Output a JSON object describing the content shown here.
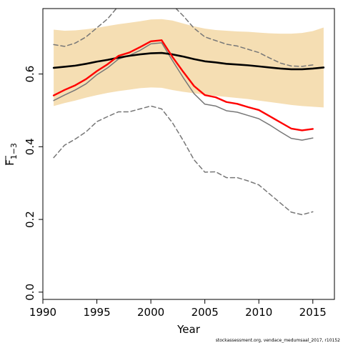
{
  "chart_data": {
    "type": "line",
    "title": "",
    "xlabel": "Year",
    "ylabel": "F",
    "ylabel_sub": "1−3",
    "xlim": [
      1990,
      2017
    ],
    "ylim": [
      -0.02,
      0.78
    ],
    "xticks": [
      1990,
      1995,
      2000,
      2005,
      2010,
      2015
    ],
    "yticks": [
      0.0,
      0.2,
      0.4,
      0.6
    ],
    "ytick_labels": [
      "0.0",
      "0.2",
      "0.4",
      "0.6"
    ],
    "grid": false,
    "legend": "none",
    "band": {
      "color": "#f5deb3",
      "x": [
        1991,
        1992,
        1993,
        1994,
        1995,
        1996,
        1997,
        1998,
        1999,
        2000,
        2001,
        2002,
        2003,
        2004,
        2005,
        2006,
        2007,
        2008,
        2009,
        2010,
        2011,
        2012,
        2013,
        2014,
        2015,
        2016
      ],
      "lower": [
        0.512,
        0.52,
        0.527,
        0.535,
        0.542,
        0.548,
        0.553,
        0.557,
        0.561,
        0.563,
        0.562,
        0.556,
        0.551,
        0.547,
        0.543,
        0.54,
        0.537,
        0.534,
        0.531,
        0.527,
        0.523,
        0.519,
        0.515,
        0.512,
        0.51,
        0.508
      ],
      "upper": [
        0.722,
        0.719,
        0.72,
        0.723,
        0.727,
        0.732,
        0.737,
        0.741,
        0.745,
        0.75,
        0.751,
        0.747,
        0.739,
        0.731,
        0.725,
        0.721,
        0.719,
        0.717,
        0.716,
        0.714,
        0.712,
        0.711,
        0.711,
        0.713,
        0.718,
        0.728
      ]
    },
    "series": [
      {
        "color": "#000000",
        "style": "solid",
        "x": [
          1991,
          1992,
          1993,
          1994,
          1995,
          1996,
          1997,
          1998,
          1999,
          2000,
          2001,
          2002,
          2003,
          2004,
          2005,
          2006,
          2007,
          2008,
          2009,
          2010,
          2011,
          2012,
          2013,
          2014,
          2015,
          2016
        ],
        "values": [
          0.617,
          0.62,
          0.623,
          0.628,
          0.634,
          0.639,
          0.645,
          0.65,
          0.654,
          0.657,
          0.658,
          0.654,
          0.648,
          0.641,
          0.635,
          0.632,
          0.628,
          0.626,
          0.624,
          0.621,
          0.618,
          0.615,
          0.613,
          0.613,
          0.615,
          0.618
        ]
      },
      {
        "color": "#ff0000",
        "style": "solid",
        "x": [
          1991,
          1992,
          1993,
          1994,
          1995,
          1996,
          1997,
          1998,
          1999,
          2000,
          2001,
          2002,
          2003,
          2004,
          2005,
          2006,
          2007,
          2008,
          2009,
          2010,
          2011,
          2012,
          2013,
          2014,
          2015
        ],
        "values": [
          0.541,
          0.556,
          0.569,
          0.586,
          0.608,
          0.627,
          0.65,
          0.659,
          0.674,
          0.69,
          0.693,
          0.647,
          0.606,
          0.567,
          0.542,
          0.536,
          0.523,
          0.518,
          0.509,
          0.501,
          0.484,
          0.467,
          0.45,
          0.445,
          0.449
        ]
      },
      {
        "color": "#777777",
        "style": "solid",
        "x": [
          1991,
          1992,
          1993,
          1994,
          1995,
          1996,
          1997,
          1998,
          1999,
          2000,
          2001,
          2002,
          2003,
          2004,
          2005,
          2006,
          2007,
          2008,
          2009,
          2010,
          2011,
          2012,
          2013,
          2014,
          2015
        ],
        "values": [
          0.527,
          0.542,
          0.556,
          0.573,
          0.598,
          0.617,
          0.641,
          0.651,
          0.665,
          0.683,
          0.686,
          0.637,
          0.59,
          0.546,
          0.517,
          0.512,
          0.499,
          0.495,
          0.486,
          0.477,
          0.46,
          0.441,
          0.423,
          0.418,
          0.424
        ]
      },
      {
        "color": "#777777",
        "style": "dashed",
        "x": [
          1991,
          1992,
          1993,
          1994,
          1995,
          1996,
          1997,
          1998,
          1999,
          2000,
          2001,
          2002,
          2003,
          2004,
          2005,
          2006,
          2007,
          2008,
          2009,
          2010,
          2011,
          2012,
          2013,
          2014,
          2015
        ],
        "values": [
          0.681,
          0.676,
          0.685,
          0.702,
          0.727,
          0.752,
          0.787,
          0.8,
          0.82,
          0.835,
          0.83,
          0.79,
          0.76,
          0.726,
          0.702,
          0.692,
          0.682,
          0.677,
          0.668,
          0.659,
          0.644,
          0.63,
          0.622,
          0.621,
          0.625
        ]
      },
      {
        "color": "#777777",
        "style": "dashed",
        "x": [
          1991,
          1992,
          1993,
          1994,
          1995,
          1996,
          1997,
          1998,
          1999,
          2000,
          2001,
          2002,
          2003,
          2004,
          2005,
          2006,
          2007,
          2008,
          2009,
          2010,
          2011,
          2012,
          2013,
          2014,
          2015
        ],
        "values": [
          0.37,
          0.404,
          0.421,
          0.441,
          0.469,
          0.483,
          0.496,
          0.496,
          0.504,
          0.512,
          0.504,
          0.466,
          0.417,
          0.364,
          0.33,
          0.331,
          0.315,
          0.315,
          0.306,
          0.295,
          0.27,
          0.245,
          0.22,
          0.213,
          0.221
        ]
      }
    ],
    "credit": "stockassessment.org, vendace_medumsaal_2017, r10152"
  }
}
